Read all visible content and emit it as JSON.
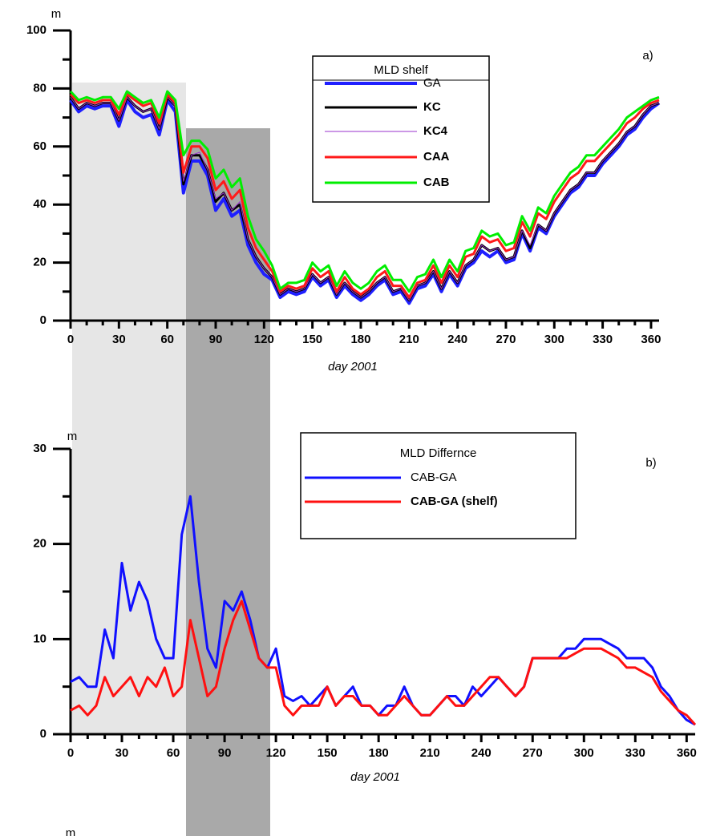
{
  "chart_data": [
    {
      "type": "line",
      "panel_label": "a)",
      "y_unit": "m",
      "x_label": "day 2001",
      "legend_title": "MLD shelf",
      "xlim": [
        0,
        365
      ],
      "xticks": [
        0,
        30,
        60,
        90,
        120,
        150,
        180,
        210,
        240,
        270,
        300,
        330,
        360
      ],
      "ylim": [
        0,
        100
      ],
      "yticks": [
        0,
        20,
        40,
        60,
        80,
        100
      ],
      "x": [
        0,
        5,
        10,
        15,
        20,
        25,
        30,
        35,
        40,
        45,
        50,
        55,
        60,
        65,
        70,
        75,
        80,
        85,
        90,
        95,
        100,
        105,
        110,
        115,
        120,
        125,
        130,
        135,
        140,
        145,
        150,
        155,
        160,
        165,
        170,
        175,
        180,
        185,
        190,
        195,
        200,
        205,
        210,
        215,
        220,
        225,
        230,
        235,
        240,
        245,
        250,
        255,
        260,
        265,
        270,
        275,
        280,
        285,
        290,
        295,
        300,
        305,
        310,
        315,
        320,
        325,
        330,
        335,
        340,
        345,
        350,
        355,
        360,
        365
      ],
      "series": [
        {
          "name": "GA",
          "color": "#1f1fff",
          "values": [
            76,
            72,
            74,
            73,
            74,
            74,
            67,
            76,
            72,
            70,
            71,
            64,
            76,
            72,
            44,
            55,
            55,
            50,
            38,
            42,
            36,
            38,
            26,
            20,
            16,
            14,
            8,
            10,
            9,
            10,
            15,
            12,
            14,
            8,
            12,
            9,
            7,
            9,
            12,
            14,
            9,
            10,
            6,
            11,
            12,
            16,
            10,
            16,
            12,
            18,
            20,
            24,
            22,
            24,
            20,
            21,
            30,
            24,
            32,
            30,
            36,
            40,
            44,
            46,
            50,
            50,
            54,
            57,
            60,
            64,
            66,
            70,
            73,
            75
          ]
        },
        {
          "name": "KC",
          "color": "#000000",
          "values": [
            77,
            73,
            75,
            74,
            75,
            75,
            69,
            77,
            74,
            72,
            73,
            66,
            77,
            74,
            47,
            57,
            57,
            52,
            41,
            44,
            38,
            40,
            28,
            22,
            18,
            15,
            9,
            11,
            10,
            11,
            16,
            13,
            15,
            9,
            13,
            10,
            8,
            10,
            13,
            15,
            10,
            11,
            7,
            12,
            13,
            17,
            11,
            17,
            13,
            19,
            21,
            26,
            24,
            25,
            21,
            22,
            31,
            25,
            33,
            31,
            37,
            41,
            45,
            47,
            51,
            51,
            55,
            58,
            61,
            65,
            67,
            71,
            74,
            75
          ]
        },
        {
          "name": "KC4",
          "color": "#9932cc",
          "values": [
            77,
            73,
            75,
            74,
            75,
            75,
            69,
            77,
            74,
            72,
            73,
            66,
            77,
            74,
            48,
            57,
            58,
            52,
            42,
            44,
            38,
            41,
            28,
            22,
            18,
            15,
            9,
            11,
            10,
            11,
            16,
            13,
            15,
            9,
            13,
            10,
            8,
            10,
            13,
            15,
            10,
            11,
            7,
            12,
            13,
            17,
            11,
            17,
            13,
            19,
            21,
            26,
            24,
            25,
            21,
            22,
            31,
            26,
            33,
            31,
            37,
            41,
            45,
            47,
            51,
            51,
            55,
            58,
            61,
            65,
            67,
            71,
            74,
            75
          ]
        },
        {
          "name": "CAA",
          "color": "#ff1a1a",
          "values": [
            78,
            75,
            76,
            75,
            76,
            76,
            71,
            78,
            76,
            74,
            75,
            68,
            78,
            75,
            51,
            60,
            60,
            56,
            45,
            48,
            42,
            45,
            32,
            25,
            21,
            17,
            10,
            12,
            11,
            12,
            18,
            15,
            17,
            10,
            15,
            11,
            9,
            11,
            15,
            17,
            12,
            12,
            8,
            13,
            14,
            19,
            13,
            19,
            15,
            22,
            23,
            29,
            27,
            28,
            24,
            25,
            34,
            29,
            37,
            35,
            41,
            45,
            49,
            51,
            55,
            55,
            58,
            61,
            64,
            68,
            70,
            73,
            75,
            76
          ]
        },
        {
          "name": "CAB",
          "color": "#00ee00",
          "values": [
            79,
            76,
            77,
            76,
            77,
            77,
            73,
            79,
            77,
            75,
            76,
            70,
            79,
            76,
            57,
            62,
            62,
            59,
            49,
            52,
            46,
            49,
            36,
            28,
            24,
            19,
            11,
            13,
            13,
            14,
            20,
            17,
            19,
            12,
            17,
            13,
            11,
            13,
            17,
            19,
            14,
            14,
            10,
            15,
            16,
            21,
            15,
            21,
            17,
            24,
            25,
            31,
            29,
            30,
            26,
            27,
            36,
            31,
            39,
            37,
            43,
            47,
            51,
            53,
            57,
            57,
            60,
            63,
            66,
            70,
            72,
            74,
            76,
            77
          ]
        }
      ]
    },
    {
      "type": "line",
      "panel_label": "b)",
      "y_unit": "m",
      "x_label": "day 2001",
      "legend_title": "MLD Differnce",
      "xlim": [
        0,
        365
      ],
      "xticks": [
        0,
        30,
        60,
        90,
        120,
        150,
        180,
        210,
        240,
        270,
        300,
        330,
        360
      ],
      "ylim": [
        0,
        30
      ],
      "yticks": [
        0,
        10,
        20,
        30
      ],
      "x": [
        0,
        5,
        10,
        15,
        20,
        25,
        30,
        35,
        40,
        45,
        50,
        55,
        60,
        65,
        70,
        75,
        80,
        85,
        90,
        95,
        100,
        105,
        110,
        115,
        120,
        125,
        130,
        135,
        140,
        145,
        150,
        155,
        160,
        165,
        170,
        175,
        180,
        185,
        190,
        195,
        200,
        205,
        210,
        215,
        220,
        225,
        230,
        235,
        240,
        245,
        250,
        255,
        260,
        265,
        270,
        275,
        280,
        285,
        290,
        295,
        300,
        305,
        310,
        315,
        320,
        325,
        330,
        335,
        340,
        345,
        350,
        355,
        360,
        365
      ],
      "series": [
        {
          "name": "CAB-GA",
          "color": "#1010ff",
          "values": [
            5.5,
            6,
            5,
            5,
            11,
            8,
            18,
            13,
            16,
            14,
            10,
            8,
            8,
            21,
            25,
            16,
            9,
            7,
            14,
            13,
            15,
            12,
            8,
            7,
            9,
            4,
            3.5,
            4,
            3,
            4,
            5,
            3,
            4,
            5,
            3,
            3,
            2,
            3,
            3,
            5,
            3,
            2,
            2,
            3,
            4,
            4,
            3,
            5,
            4,
            5,
            6,
            5,
            4,
            5,
            8,
            8,
            8,
            8,
            9,
            9,
            10,
            10,
            10,
            9.5,
            9,
            8,
            8,
            8,
            7,
            5,
            4,
            2.5,
            1.5,
            1
          ]
        },
        {
          "name": "CAB-GA (shelf)",
          "color": "#ff1010",
          "values": [
            2.5,
            3,
            2,
            3,
            6,
            4,
            5,
            6,
            4,
            6,
            5,
            7,
            4,
            5,
            12,
            8,
            4,
            5,
            9,
            12,
            14,
            11,
            8,
            7,
            7,
            3,
            2,
            3,
            3,
            3,
            5,
            3,
            4,
            4,
            3,
            3,
            2,
            2,
            3,
            4,
            3,
            2,
            2,
            3,
            4,
            3,
            3,
            4,
            5,
            6,
            6,
            5,
            4,
            5,
            8,
            8,
            8,
            8,
            8,
            8.5,
            9,
            9,
            9,
            8.5,
            8,
            7,
            7,
            6.5,
            6,
            4.5,
            3.5,
            2.5,
            2,
            1
          ]
        }
      ]
    }
  ],
  "cut_off_label": "m"
}
